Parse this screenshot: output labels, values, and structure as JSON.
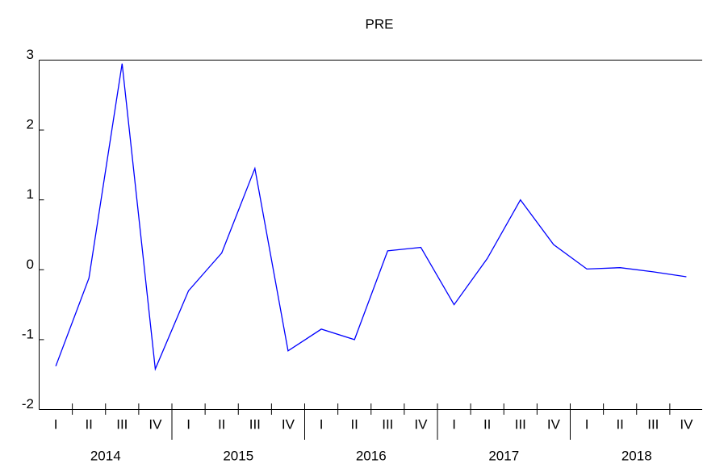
{
  "chart_data": {
    "type": "line",
    "title": "PRE",
    "categories": [
      "I",
      "II",
      "III",
      "IV",
      "I",
      "II",
      "III",
      "IV",
      "I",
      "II",
      "III",
      "IV",
      "I",
      "II",
      "III",
      "IV",
      "I",
      "II",
      "III",
      "IV"
    ],
    "groups": [
      "2014",
      "2015",
      "2016",
      "2017",
      "2018"
    ],
    "series": [
      {
        "name": "PRE",
        "color": "#0000ff",
        "values": [
          -1.38,
          -0.12,
          2.95,
          -1.42,
          -0.3,
          0.24,
          1.45,
          -1.16,
          -0.85,
          -1.0,
          0.27,
          0.32,
          -0.5,
          0.16,
          1.0,
          0.36,
          0.01,
          0.03,
          -0.03,
          -0.1
        ]
      }
    ],
    "ylim": [
      -2,
      3
    ],
    "yticks": [
      -2,
      -1,
      0,
      1,
      2,
      3
    ],
    "grid": false
  }
}
